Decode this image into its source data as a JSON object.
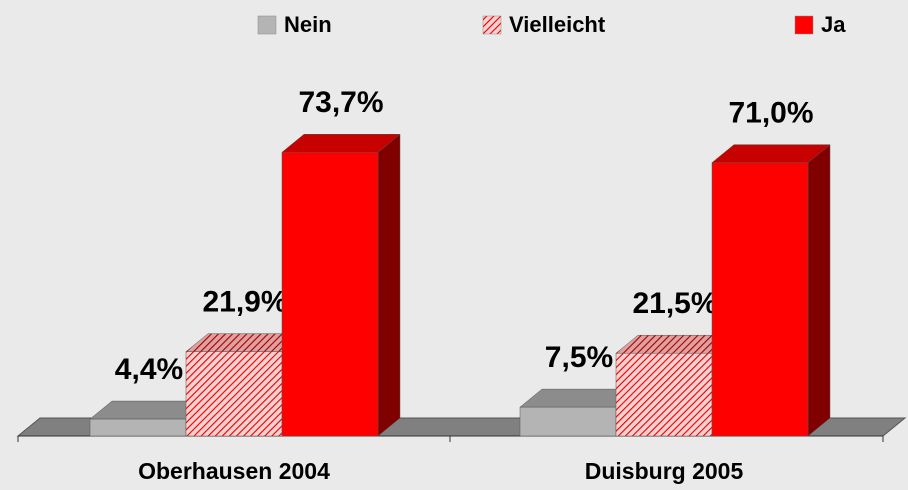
{
  "chart_data": {
    "type": "bar3d",
    "categories": [
      "Oberhausen 2004",
      "Duisburg 2005"
    ],
    "series": [
      {
        "name": "Nein",
        "color": "#b4b4b4",
        "values": [
          4.4,
          7.5
        ],
        "value_labels": [
          "4,4%",
          "7,5%"
        ]
      },
      {
        "name": "Vielleicht",
        "color": "#ff5050",
        "pattern": "hatch",
        "values": [
          21.9,
          21.5
        ],
        "value_labels": [
          "21,9%",
          "21,5%"
        ]
      },
      {
        "name": "Ja",
        "color": "#ff0000",
        "values": [
          73.7,
          71.0
        ],
        "value_labels": [
          "73,7%",
          "71,0%"
        ]
      }
    ],
    "legend": "top"
  }
}
